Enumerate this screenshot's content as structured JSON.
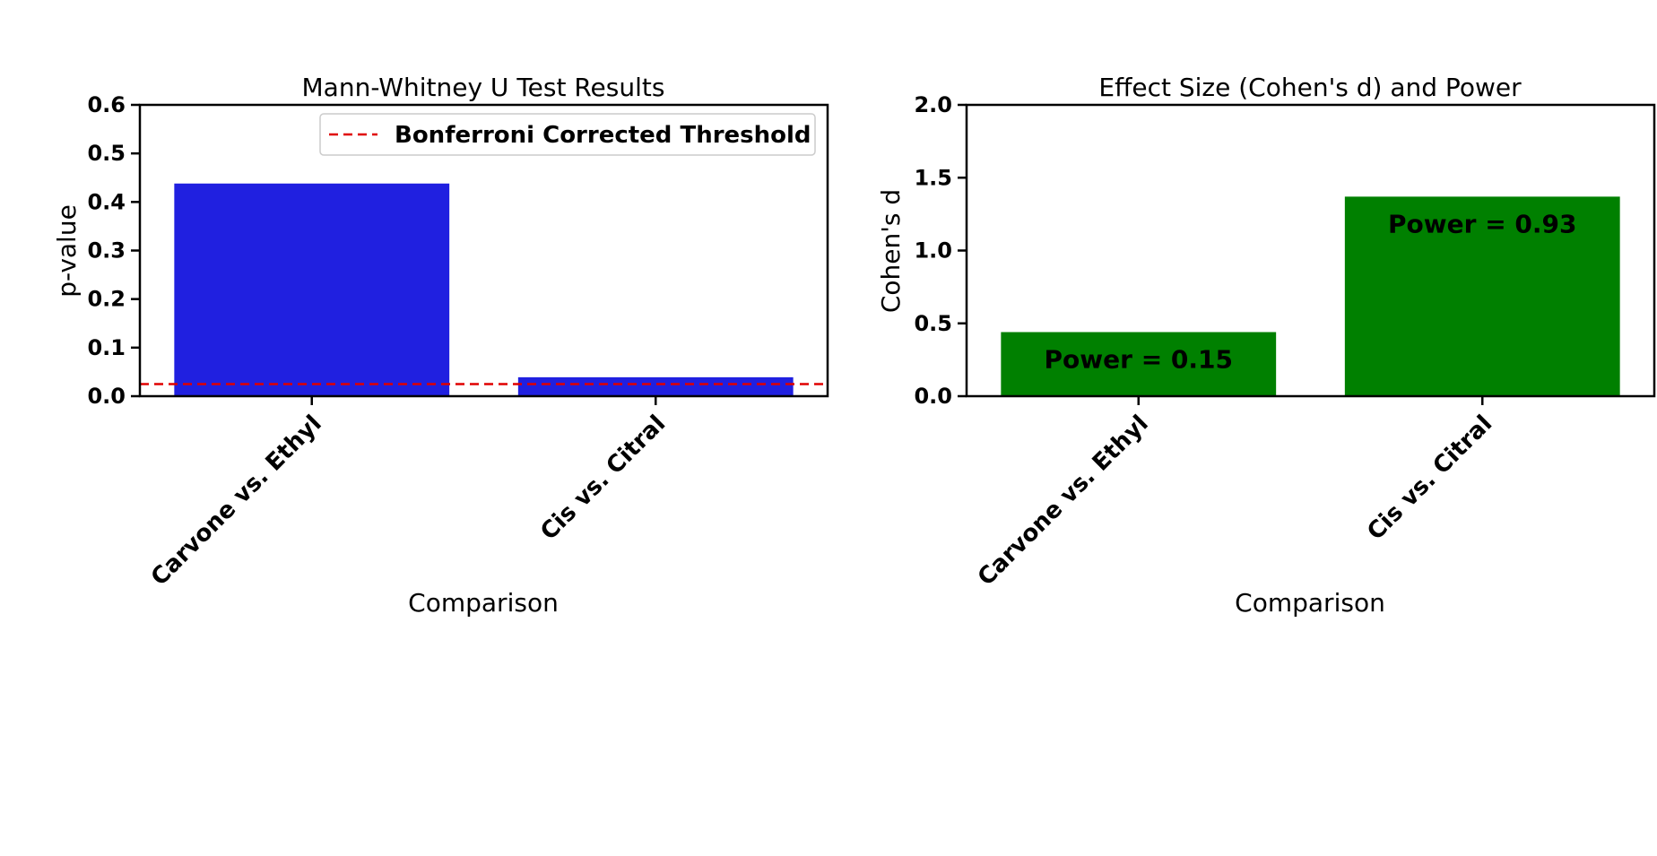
{
  "chart_data": [
    {
      "type": "bar",
      "title": "Mann-Whitney U Test Results",
      "xlabel": "Comparison",
      "ylabel": "p-value",
      "categories": [
        "Carvone vs. Ethyl",
        "Cis vs. Citral"
      ],
      "values": [
        0.438,
        0.039
      ],
      "ylim": [
        0,
        0.6
      ],
      "yticks": [
        "0.0",
        "0.1",
        "0.2",
        "0.3",
        "0.4",
        "0.5",
        "0.6"
      ],
      "bar_color": "#2020e0",
      "threshold": {
        "name": "Bonferroni Corrected Threshold",
        "value": 0.025,
        "color": "#e00000"
      },
      "legend_placement": "top-right",
      "grid": false
    },
    {
      "type": "bar",
      "title": "Effect Size (Cohen's d) and Power",
      "xlabel": "Comparison",
      "ylabel": "Cohen's d",
      "categories": [
        "Carvone vs. Ethyl",
        "Cis vs. Citral"
      ],
      "values": [
        0.44,
        1.37
      ],
      "ylim": [
        0,
        2.0
      ],
      "yticks": [
        "0.0",
        "0.5",
        "1.0",
        "1.5",
        "2.0"
      ],
      "bar_color": "#008000",
      "annotations": [
        "Power = 0.15",
        "Power = 0.93"
      ],
      "grid": false
    }
  ]
}
